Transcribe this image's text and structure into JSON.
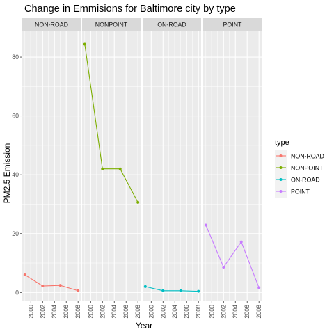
{
  "chart_data": {
    "type": "line",
    "title": "Change in Emmisions for Baltimore city by type",
    "xlabel": "Year",
    "ylabel": "PM2.5 Emission",
    "x_ticks": [
      "2000",
      "2002",
      "2004",
      "2006",
      "2008"
    ],
    "y_ticks": [
      0,
      20,
      40,
      60,
      80
    ],
    "ylim": [
      -3,
      89
    ],
    "xlim": [
      1998.55,
      2008.45
    ],
    "grid": true,
    "legend_title": "type",
    "legend_position": "right",
    "facets": [
      {
        "name": "NON-ROAD",
        "color": "#F8766D",
        "x": [
          1999,
          2002,
          2005,
          2008
        ],
        "values": [
          6.0,
          2.2,
          2.4,
          0.6
        ]
      },
      {
        "name": "NONPOINT",
        "color": "#7CAE00",
        "x": [
          1999,
          2002,
          2005,
          2008
        ],
        "values": [
          84.4,
          42.0,
          42.0,
          30.6
        ]
      },
      {
        "name": "ON-ROAD",
        "color": "#00BFC4",
        "x": [
          1999,
          2002,
          2005,
          2008
        ],
        "values": [
          2.0,
          0.6,
          0.6,
          0.4
        ]
      },
      {
        "name": "POINT",
        "color": "#C77CFF",
        "x": [
          1999,
          2002,
          2005,
          2008
        ],
        "values": [
          22.9,
          8.6,
          17.2,
          1.6
        ]
      }
    ]
  }
}
